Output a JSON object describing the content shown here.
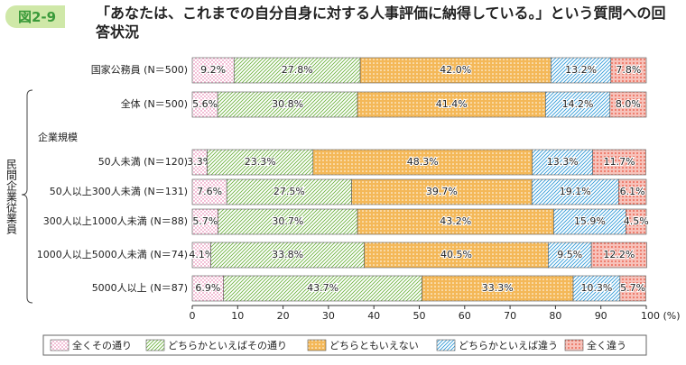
{
  "chart_data": {
    "type": "stacked_bar_horizontal",
    "figure_label": "図2-9",
    "title": "「あなたは、これまでの自分自身に対する人事評価に納得している。」という質問への回答状況",
    "section_label": "企業規模",
    "group_label": "民間企業従業員",
    "categories": [
      "国家公務員 (N＝500)",
      "全体 (N＝500)",
      "50人未満 (N＝120)",
      "50人以上300人未満 (N＝131)",
      "300人以上1000人未満 (N＝88)",
      "1000人以上5000人未満 (N＝74)",
      "5000人以上 (N＝87)"
    ],
    "series": [
      {
        "name": "全くその通り",
        "color": "#e0609a",
        "pattern": "dots",
        "values": [
          9.2,
          5.6,
          3.3,
          7.6,
          5.7,
          4.1,
          6.9
        ],
        "value_labels": [
          "9.2%",
          "5.6%",
          "3.3%",
          "7.6%",
          "5.7%",
          "4.1%",
          "6.9%"
        ]
      },
      {
        "name": "どちらかといえばその通り",
        "color": "#6db33f",
        "pattern": "diagonal",
        "values": [
          27.8,
          30.8,
          23.3,
          27.5,
          30.7,
          33.8,
          43.7
        ],
        "value_labels": [
          "27.8%",
          "30.8%",
          "23.3%",
          "27.5%",
          "30.7%",
          "33.8%",
          "43.7%"
        ]
      },
      {
        "name": "どちらともいえない",
        "color": "#f0a020",
        "pattern": "dense",
        "values": [
          42.0,
          41.4,
          48.3,
          39.7,
          43.2,
          40.5,
          33.3
        ],
        "value_labels": [
          "42.0%",
          "41.4%",
          "48.3%",
          "39.7%",
          "43.2%",
          "40.5%",
          "33.3%"
        ]
      },
      {
        "name": "どちらかといえば違う",
        "color": "#2f9ad8",
        "pattern": "diagonal",
        "values": [
          13.2,
          14.2,
          13.3,
          19.1,
          15.9,
          9.5,
          10.3
        ],
        "value_labels": [
          "13.2%",
          "14.2%",
          "13.3%",
          "19.1%",
          "15.9%",
          "9.5%",
          "10.3%"
        ]
      },
      {
        "name": "全く違う",
        "color": "#e8503a",
        "pattern": "cross",
        "values": [
          7.8,
          8.0,
          11.7,
          6.1,
          4.5,
          12.2,
          5.7
        ],
        "value_labels": [
          "7.8%",
          "8.0%",
          "11.7%",
          "6.1%",
          "4.5%",
          "12.2%",
          "5.7%"
        ]
      }
    ],
    "xlim": [
      0,
      100
    ],
    "xticks": [
      0,
      10,
      20,
      30,
      40,
      50,
      60,
      70,
      80,
      90,
      {
        "value": 100,
        "label": "100 (%)"
      }
    ]
  }
}
